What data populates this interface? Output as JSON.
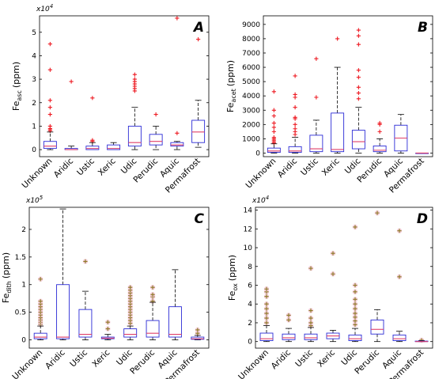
{
  "figure": {
    "categories": [
      "Unknown",
      "Aridic",
      "Ustic",
      "Xeric",
      "Udic",
      "Perudic",
      "Aquic",
      "Permafrost"
    ],
    "colors": {
      "box": "#2b2bd6",
      "median": "#e0406a",
      "outlier_red": "#ee1c24",
      "outlier_olive": "#8c7a26",
      "halo": "#f4c6d4"
    }
  },
  "chart_data": [
    {
      "type": "box",
      "panel": "A",
      "ylabel_main": "Fe",
      "ylabel_sub": "asc",
      "ylabel_unit": "(ppm)",
      "multiplier": "x10",
      "multiplier_exp": "4",
      "ylim": [
        -0.3,
        5.7
      ],
      "yticks": [
        0,
        1,
        2,
        3,
        4,
        5
      ],
      "tick_labels": [
        "0",
        "1",
        "2",
        "3",
        "4",
        "5"
      ],
      "outlier_style": "red-plus",
      "boxes": [
        {
          "category": "Unknown",
          "whisker_low": 0.0,
          "q1": 0.05,
          "median": 0.15,
          "q3": 0.35,
          "whisker_high": 0.75,
          "outliers": [
            0.8,
            0.85,
            0.9,
            1.0,
            1.5,
            1.8,
            2.1,
            3.4,
            4.5
          ]
        },
        {
          "category": "Aridic",
          "whisker_low": 0.0,
          "q1": 0.0,
          "median": 0.0,
          "q3": 0.05,
          "whisker_high": 0.15,
          "outliers": [
            2.9
          ]
        },
        {
          "category": "Ustic",
          "whisker_low": 0.0,
          "q1": 0.0,
          "median": 0.05,
          "q3": 0.15,
          "whisker_high": 0.3,
          "outliers": [
            0.35,
            0.4,
            2.2
          ]
        },
        {
          "category": "Xeric",
          "whisker_low": 0.0,
          "q1": 0.0,
          "median": 0.05,
          "q3": 0.2,
          "whisker_high": 0.3,
          "outliers": []
        },
        {
          "category": "Udic",
          "whisker_low": 0.0,
          "q1": 0.15,
          "median": 0.3,
          "q3": 1.0,
          "whisker_high": 1.8,
          "outliers": [
            2.5,
            2.6,
            2.7,
            2.8,
            2.9,
            3.0,
            3.2
          ]
        },
        {
          "category": "Perudic",
          "whisker_low": 0.0,
          "q1": 0.2,
          "median": 0.35,
          "q3": 0.65,
          "whisker_high": 1.0,
          "outliers": [
            1.5
          ]
        },
        {
          "category": "Aquic",
          "whisker_low": 0.0,
          "q1": 0.15,
          "median": 0.2,
          "q3": 0.3,
          "whisker_high": 0.35,
          "outliers": [
            0.7,
            5.6
          ]
        },
        {
          "category": "Permafrost",
          "whisker_low": 0.1,
          "q1": 0.3,
          "median": 0.75,
          "q3": 1.25,
          "whisker_high": 2.1,
          "outliers": [
            4.7
          ]
        }
      ]
    },
    {
      "type": "box",
      "panel": "B",
      "ylabel_main": "Fe",
      "ylabel_sub": "acet",
      "ylabel_unit": "(ppm)",
      "multiplier": "",
      "multiplier_exp": "",
      "ylim": [
        -250,
        9600
      ],
      "yticks": [
        0,
        1000,
        2000,
        3000,
        4000,
        5000,
        6000,
        7000,
        8000,
        9000
      ],
      "tick_labels": [
        "0",
        "1000",
        "2000",
        "3000",
        "4000",
        "5000",
        "6000",
        "7000",
        "8000",
        "9000"
      ],
      "outlier_style": "red-plus",
      "boxes": [
        {
          "category": "Unknown",
          "whisker_low": 0,
          "q1": 50,
          "median": 150,
          "q3": 350,
          "whisker_high": 650,
          "outliers": [
            700,
            800,
            900,
            1000,
            1100,
            1500,
            1800,
            2100,
            2600,
            3000,
            4300
          ]
        },
        {
          "category": "Aridic",
          "whisker_low": 0,
          "q1": 50,
          "median": 150,
          "q3": 450,
          "whisker_high": 1100,
          "outliers": [
            1300,
            1500,
            1700,
            2000,
            2400,
            2500,
            3200,
            3900,
            4100,
            5400
          ]
        },
        {
          "category": "Ustic",
          "whisker_low": 0,
          "q1": 100,
          "median": 300,
          "q3": 1250,
          "whisker_high": 2300,
          "outliers": [
            3900,
            6600
          ]
        },
        {
          "category": "Xeric",
          "whisker_low": 0,
          "q1": 100,
          "median": 250,
          "q3": 2800,
          "whisker_high": 6000,
          "outliers": [
            8000
          ]
        },
        {
          "category": "Udic",
          "whisker_low": 0,
          "q1": 300,
          "median": 800,
          "q3": 1600,
          "whisker_high": 3200,
          "outliers": [
            3800,
            4200,
            4600,
            5300,
            5800,
            7600,
            8200,
            8600
          ]
        },
        {
          "category": "Perudic",
          "whisker_low": 0,
          "q1": 100,
          "median": 200,
          "q3": 500,
          "whisker_high": 1000,
          "outliers": [
            1500,
            2000,
            2100
          ]
        },
        {
          "category": "Aquic",
          "whisker_low": 0,
          "q1": 150,
          "median": 1050,
          "q3": 1950,
          "whisker_high": 2700,
          "outliers": []
        },
        {
          "category": "Permafrost",
          "whisker_low": 0,
          "q1": 0,
          "median": 0,
          "q3": 0,
          "whisker_high": 0,
          "outliers": []
        }
      ]
    },
    {
      "type": "box",
      "panel": "C",
      "ylabel_main": "Fe",
      "ylabel_sub": "dith",
      "ylabel_unit": "(ppm)",
      "multiplier": "x10",
      "multiplier_exp": "5",
      "ylim": [
        -0.15,
        2.4
      ],
      "yticks": [
        0,
        0.5,
        1,
        1.5,
        2
      ],
      "tick_labels": [
        "0",
        "0.5",
        "1",
        "1.5",
        "2"
      ],
      "outlier_style": "olive-plus",
      "boxes": [
        {
          "category": "Unknown",
          "whisker_low": 0.0,
          "q1": 0.02,
          "median": 0.05,
          "q3": 0.12,
          "whisker_high": 0.25,
          "outliers": [
            0.28,
            0.32,
            0.36,
            0.4,
            0.45,
            0.5,
            0.55,
            0.6,
            0.65,
            0.7,
            1.1
          ]
        },
        {
          "category": "Aridic",
          "whisker_low": 0.0,
          "q1": 0.02,
          "median": 0.05,
          "q3": 1.0,
          "whisker_high": 2.37,
          "outliers": []
        },
        {
          "category": "Ustic",
          "whisker_low": 0.0,
          "q1": 0.05,
          "median": 0.1,
          "q3": 0.55,
          "whisker_high": 0.88,
          "outliers": [
            1.42
          ]
        },
        {
          "category": "Xeric",
          "whisker_low": 0.0,
          "q1": 0.02,
          "median": 0.03,
          "q3": 0.05,
          "whisker_high": 0.1,
          "outliers": [
            0.2,
            0.32
          ]
        },
        {
          "category": "Udic",
          "whisker_low": 0.0,
          "q1": 0.05,
          "median": 0.1,
          "q3": 0.2,
          "whisker_high": 0.25,
          "outliers": [
            0.3,
            0.35,
            0.4,
            0.45,
            0.5,
            0.55,
            0.6,
            0.65,
            0.7,
            0.75,
            0.8,
            0.85,
            0.9,
            0.95
          ]
        },
        {
          "category": "Perudic",
          "whisker_low": 0.0,
          "q1": 0.05,
          "median": 0.12,
          "q3": 0.35,
          "whisker_high": 0.68,
          "outliers": [
            0.7,
            0.78,
            0.82,
            0.95
          ]
        },
        {
          "category": "Aquic",
          "whisker_low": 0.0,
          "q1": 0.05,
          "median": 0.1,
          "q3": 0.6,
          "whisker_high": 1.27,
          "outliers": []
        },
        {
          "category": "Permafrost",
          "whisker_low": 0.0,
          "q1": 0.01,
          "median": 0.02,
          "q3": 0.05,
          "whisker_high": 0.08,
          "outliers": [
            0.12,
            0.18
          ]
        }
      ]
    },
    {
      "type": "box",
      "panel": "D",
      "ylabel_main": "Fe",
      "ylabel_sub": "ox",
      "ylabel_unit": "(ppm)",
      "multiplier": "x10",
      "multiplier_exp": "4",
      "ylim": [
        -0.7,
        14.3
      ],
      "yticks": [
        0,
        2,
        4,
        6,
        8,
        10,
        12,
        14
      ],
      "tick_labels": [
        "0",
        "2",
        "4",
        "6",
        "8",
        "10",
        "12",
        "14"
      ],
      "outlier_style": "olive-plus",
      "boxes": [
        {
          "category": "Unknown",
          "whisker_low": 0.0,
          "q1": 0.1,
          "median": 0.3,
          "q3": 0.9,
          "whisker_high": 1.7,
          "outliers": [
            2.0,
            2.5,
            3.0,
            3.5,
            4.0,
            4.8,
            5.3,
            5.6
          ]
        },
        {
          "category": "Aridic",
          "whisker_low": 0.0,
          "q1": 0.2,
          "median": 0.4,
          "q3": 0.8,
          "whisker_high": 1.4,
          "outliers": [
            2.3,
            2.8
          ]
        },
        {
          "category": "Ustic",
          "whisker_low": 0.0,
          "q1": 0.2,
          "median": 0.4,
          "q3": 0.8,
          "whisker_high": 1.5,
          "outliers": [
            1.7,
            2.0,
            2.5,
            3.3,
            7.8
          ]
        },
        {
          "category": "Xeric",
          "whisker_low": 0.0,
          "q1": 0.3,
          "median": 0.6,
          "q3": 0.9,
          "whisker_high": 1.2,
          "outliers": [
            7.2,
            9.4
          ]
        },
        {
          "category": "Udic",
          "whisker_low": 0.0,
          "q1": 0.1,
          "median": 0.3,
          "q3": 0.7,
          "whisker_high": 1.4,
          "outliers": [
            1.8,
            2.2,
            2.6,
            3.0,
            3.5,
            4.0,
            4.5,
            5.3,
            6.0,
            12.2
          ]
        },
        {
          "category": "Perudic",
          "whisker_low": 0.0,
          "q1": 0.8,
          "median": 1.3,
          "q3": 2.3,
          "whisker_high": 3.4,
          "outliers": [
            13.7
          ]
        },
        {
          "category": "Aquic",
          "whisker_low": 0.0,
          "q1": 0.1,
          "median": 0.3,
          "q3": 0.7,
          "whisker_high": 1.1,
          "outliers": [
            6.9,
            11.8
          ]
        },
        {
          "category": "Permafrost",
          "whisker_low": 0.0,
          "q1": 0.0,
          "median": 0.0,
          "q3": 0.05,
          "whisker_high": 0.1,
          "outliers": [
            0.15
          ]
        }
      ]
    }
  ]
}
